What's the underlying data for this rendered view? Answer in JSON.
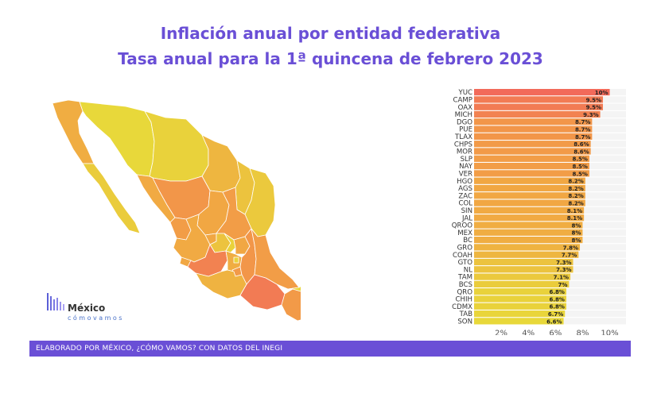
{
  "title": "Inflación anual por entidad federativa",
  "subtitle": "Tasa anual para la 1ª quincena de febrero 2023",
  "footer": "ELABORADO POR MÉXICO, ¿CÓMO VAMOS? CON DATOS DEL INEGI",
  "logo": {
    "name": "México",
    "tagline": "cómovamos"
  },
  "colors": {
    "title": "#6a4fd6",
    "footer_bg": "#6a4fd6",
    "low": "#e8d83a",
    "mid": "#f2a444",
    "high": "#f26a5a"
  },
  "chart_data": {
    "type": "bar",
    "orientation": "horizontal",
    "categories": [
      "YUC",
      "CAMP",
      "OAX",
      "MICH",
      "DGO",
      "PUE",
      "TLAX",
      "CHPS",
      "MOR",
      "SLP",
      "NAY",
      "VER",
      "HGO",
      "AGS",
      "ZAC",
      "COL",
      "SIN",
      "JAL",
      "QROO",
      "MEX",
      "BC",
      "GRO",
      "COAH",
      "GTO",
      "NL",
      "TAM",
      "BCS",
      "QRO",
      "CHIH",
      "CDMX",
      "TAB",
      "SON"
    ],
    "values": [
      10,
      9.5,
      9.5,
      9.3,
      8.7,
      8.7,
      8.7,
      8.6,
      8.6,
      8.5,
      8.5,
      8.5,
      8.2,
      8.2,
      8.2,
      8.2,
      8.1,
      8.1,
      8,
      8,
      8,
      7.8,
      7.7,
      7.3,
      7.3,
      7.1,
      7,
      6.8,
      6.8,
      6.8,
      6.7,
      6.6
    ],
    "value_labels": [
      "10%",
      "9.5%",
      "9.5%",
      "9.3%",
      "8.7%",
      "8.7%",
      "8.7%",
      "8.6%",
      "8.6%",
      "8.5%",
      "8.5%",
      "8.5%",
      "8.2%",
      "8.2%",
      "8.2%",
      "8.2%",
      "8.1%",
      "8.1%",
      "8%",
      "8%",
      "8%",
      "7.8%",
      "7.7%",
      "7.3%",
      "7.3%",
      "7.1%",
      "7%",
      "6.8%",
      "6.8%",
      "6.8%",
      "6.7%",
      "6.6%"
    ],
    "xticks": [
      "2%",
      "4%",
      "6%",
      "8%",
      "10%"
    ],
    "xtick_values": [
      2,
      4,
      6,
      8,
      10
    ],
    "xlim": [
      0,
      11.2
    ],
    "grid": false
  },
  "map": {
    "type": "choropleth",
    "regions": [
      "BC",
      "BCS",
      "SON",
      "CHIH",
      "COAH",
      "NL",
      "TAM",
      "SIN",
      "DGO",
      "ZAC",
      "NAY",
      "JAL",
      "AGS",
      "SLP",
      "GTO",
      "QRO",
      "HGO",
      "COL",
      "MICH",
      "MEX",
      "CDMX",
      "MOR",
      "TLAX",
      "PUE",
      "VER",
      "GRO",
      "OAX",
      "CHPS",
      "TAB",
      "CAMP",
      "YUC",
      "QROO"
    ]
  }
}
